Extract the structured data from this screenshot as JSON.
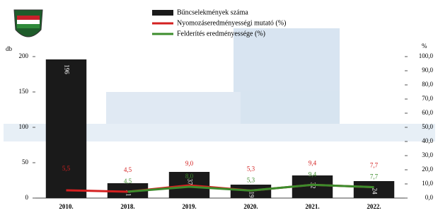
{
  "chart_data": {
    "type": "bar-line",
    "ylabel": "db",
    "y2label": "%",
    "categories": [
      "2010.",
      "2018.",
      "2019.",
      "2020.",
      "2021.",
      "2022."
    ],
    "series": [
      {
        "name": "Bűncselekmények száma",
        "color": "#1a1a1a",
        "kind": "bar",
        "values": [
          196,
          21,
          37,
          19,
          32,
          24
        ]
      },
      {
        "name": "Nyomozáseredményességi mutató (%)",
        "color": "#d42020",
        "kind": "line",
        "axis": "y2",
        "values": [
          5.5,
          4.5,
          9.0,
          5.3,
          9.4,
          7.7
        ],
        "value_labels": [
          "5,5",
          "4,5",
          "9,0",
          "5,3",
          "9,4",
          "7,7"
        ]
      },
      {
        "name": "Felderítés eredményessége (%)",
        "color": "#3c8c2c",
        "kind": "line",
        "axis": "y2",
        "values": [
          null,
          4.5,
          8.0,
          5.3,
          9.4,
          7.7
        ],
        "value_labels": [
          null,
          "4,5",
          "8,0",
          "5,3",
          "9,4",
          "7,7"
        ]
      }
    ],
    "ylim": [
      0,
      200
    ],
    "yticks": [
      0,
      50,
      100,
      150,
      200
    ],
    "y2lim": [
      0,
      100
    ],
    "y2ticks": [
      {
        "value": 0,
        "label": "0,0"
      },
      {
        "value": 10,
        "label": "10,0"
      },
      {
        "value": 20,
        "label": "20,0"
      },
      {
        "value": 30,
        "label": "30,0"
      },
      {
        "value": 40,
        "label": "40,0"
      },
      {
        "value": 50,
        "label": "50,0"
      },
      {
        "value": 60,
        "label": "60,0"
      },
      {
        "value": 70,
        "label": "70,0"
      },
      {
        "value": 80,
        "label": "80,0"
      },
      {
        "value": 90,
        "label": "90,0"
      },
      {
        "value": 100,
        "label": "100,0"
      }
    ]
  }
}
